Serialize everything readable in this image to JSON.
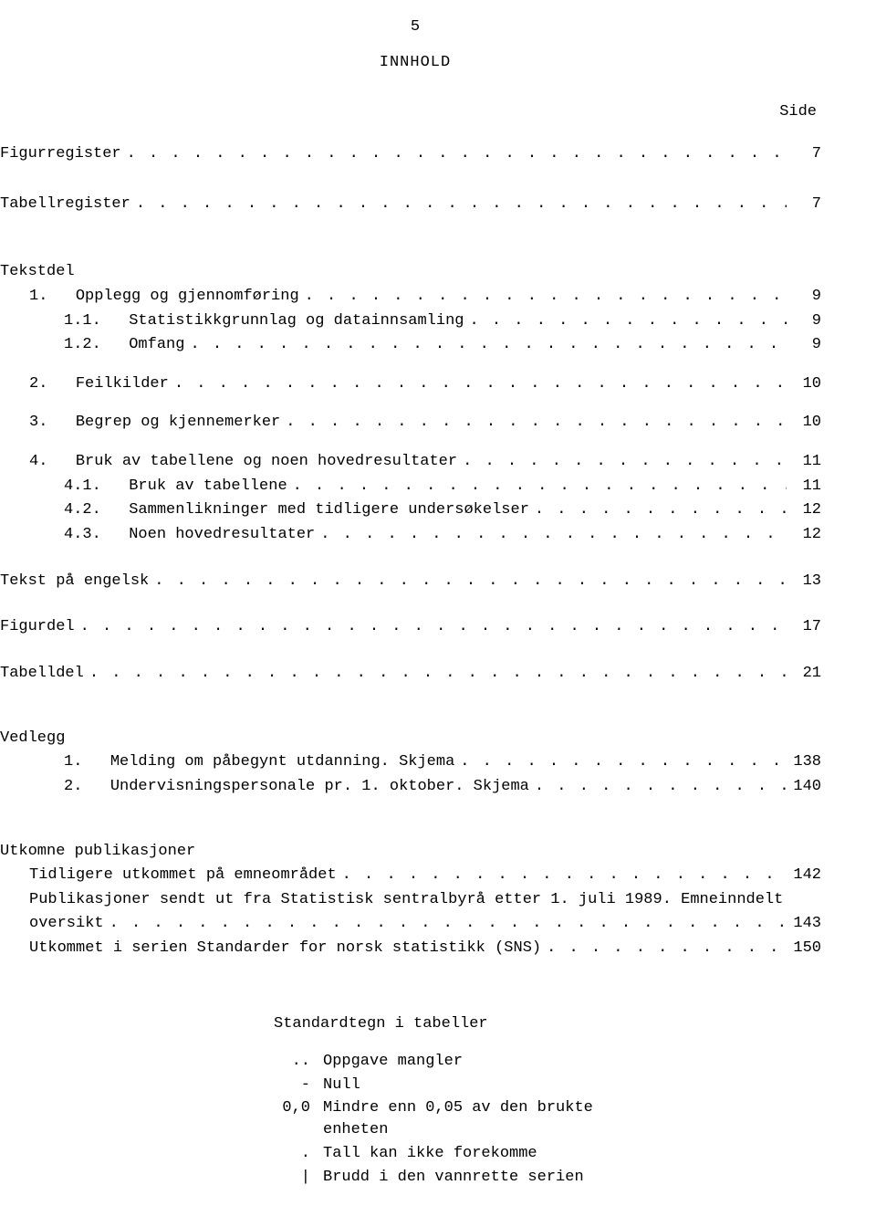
{
  "page_number": "5",
  "page_title": "INNHOLD",
  "side_label": "Side",
  "toc": [
    {
      "type": "row",
      "indent": 0,
      "num": "",
      "label": "Figurregister",
      "page": "7",
      "gap_before": 0,
      "gap_after": 26
    },
    {
      "type": "row",
      "indent": 0,
      "num": "",
      "label": "Tabellregister",
      "page": "7",
      "gap_before": 0,
      "gap_after": 26
    },
    {
      "type": "header",
      "indent": 0,
      "label": "Tekstdel"
    },
    {
      "type": "row",
      "indent": 1,
      "num": "1.",
      "label": "Opplegg og gjennomføring",
      "page": "9"
    },
    {
      "type": "row",
      "indent": 2,
      "num": "1.1.",
      "label": "Statistikkgrunnlag og datainnsamling",
      "page": "9"
    },
    {
      "type": "row",
      "indent": 2,
      "num": "1.2.",
      "label": "Omfang",
      "page": "9",
      "gap_after": 14
    },
    {
      "type": "row",
      "indent": 1,
      "num": "2.",
      "label": "Feilkilder",
      "page": "10",
      "gap_after": 14
    },
    {
      "type": "row",
      "indent": 1,
      "num": "3.",
      "label": "Begrep og kjennemerker",
      "page": "10",
      "gap_after": 14
    },
    {
      "type": "row",
      "indent": 1,
      "num": "4.",
      "label": "Bruk av tabellene og noen hovedresultater",
      "page": "11"
    },
    {
      "type": "row",
      "indent": 2,
      "num": "4.1.",
      "label": "Bruk av tabellene",
      "page": "11"
    },
    {
      "type": "row",
      "indent": 2,
      "num": "4.2.",
      "label": "Sammenlikninger med tidligere undersøkelser",
      "page": "12"
    },
    {
      "type": "row",
      "indent": 2,
      "num": "4.3.",
      "label": "Noen hovedresultater",
      "page": "12",
      "gap_after": 22
    },
    {
      "type": "row",
      "indent": 0,
      "num": "",
      "label": "Tekst på engelsk",
      "page": "13",
      "gap_after": 22
    },
    {
      "type": "row",
      "indent": 0,
      "num": "",
      "label": "Figurdel",
      "page": "17",
      "gap_after": 22
    },
    {
      "type": "row",
      "indent": 0,
      "num": "",
      "label": "Tabelldel",
      "page": "21",
      "gap_after": 22
    },
    {
      "type": "header",
      "indent": 0,
      "label": "Vedlegg"
    },
    {
      "type": "row",
      "indent": 2,
      "num": "1.",
      "label": "Melding om påbegynt utdanning.  Skjema",
      "page": "138"
    },
    {
      "type": "row",
      "indent": 2,
      "num": "2.",
      "label": "Undervisningspersonale pr. 1. oktober.  Skjema",
      "page": "140",
      "gap_after": 22
    },
    {
      "type": "header",
      "indent": 0,
      "label": "Utkomne publikasjoner"
    },
    {
      "type": "row",
      "indent": 1,
      "num": "",
      "label": "Tidligere utkommet på emneområdet",
      "page": "142"
    },
    {
      "type": "wrap",
      "indent": 1,
      "num": "",
      "label1": "Publikasjoner sendt ut fra Statistisk sentralbyrå etter 1. juli 1989.  Emneinndelt",
      "label2": "oversikt",
      "page": "143"
    },
    {
      "type": "row",
      "indent": 1,
      "num": "",
      "label": "Utkommet i serien Standarder for norsk statistikk (SNS)",
      "page": "150"
    }
  ],
  "footer_title": "Standardtegn i tabeller",
  "legend": [
    {
      "sym": "..",
      "text": "Oppgave mangler"
    },
    {
      "sym": "-",
      "text": "Null"
    },
    {
      "sym": "0,0",
      "text": "Mindre enn 0,05 av den brukte enheten"
    },
    {
      "sym": ".",
      "text": "Tall kan ikke forekomme"
    },
    {
      "sym": "|",
      "text": "Brudd i den vannrette serien"
    }
  ]
}
